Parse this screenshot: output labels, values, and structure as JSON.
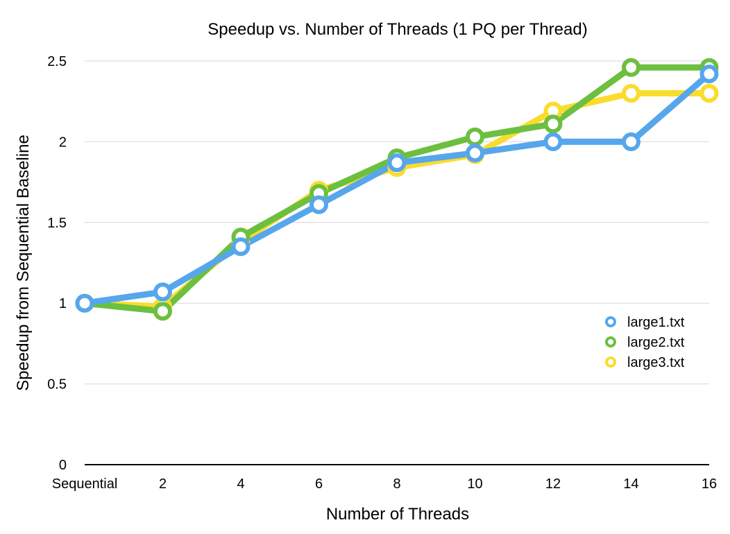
{
  "chart_data": {
    "type": "line",
    "title": "Speedup vs. Number of Threads (1 PQ per Thread)",
    "xlabel": "Number of Threads",
    "ylabel": "Speedup from Sequential Baseline",
    "categories": [
      "Sequential",
      "2",
      "4",
      "6",
      "8",
      "10",
      "12",
      "14",
      "16"
    ],
    "ylim": [
      0,
      2.5
    ],
    "yticks": [
      "0",
      "0.5",
      "1",
      "1.5",
      "2",
      "2.5"
    ],
    "grid": true,
    "legend_position": "right",
    "series": [
      {
        "name": "large3.txt",
        "color": "#f9dc2e",
        "values": [
          1.0,
          0.98,
          1.38,
          1.7,
          1.84,
          1.92,
          2.19,
          2.3,
          2.3
        ]
      },
      {
        "name": "large2.txt",
        "color": "#6cbf3f",
        "values": [
          1.0,
          0.95,
          1.41,
          1.68,
          1.9,
          2.03,
          2.11,
          2.46,
          2.46
        ]
      },
      {
        "name": "large1.txt",
        "color": "#56a6ec",
        "values": [
          1.0,
          1.07,
          1.35,
          1.61,
          1.87,
          1.93,
          2.0,
          2.0,
          2.42
        ]
      }
    ]
  }
}
